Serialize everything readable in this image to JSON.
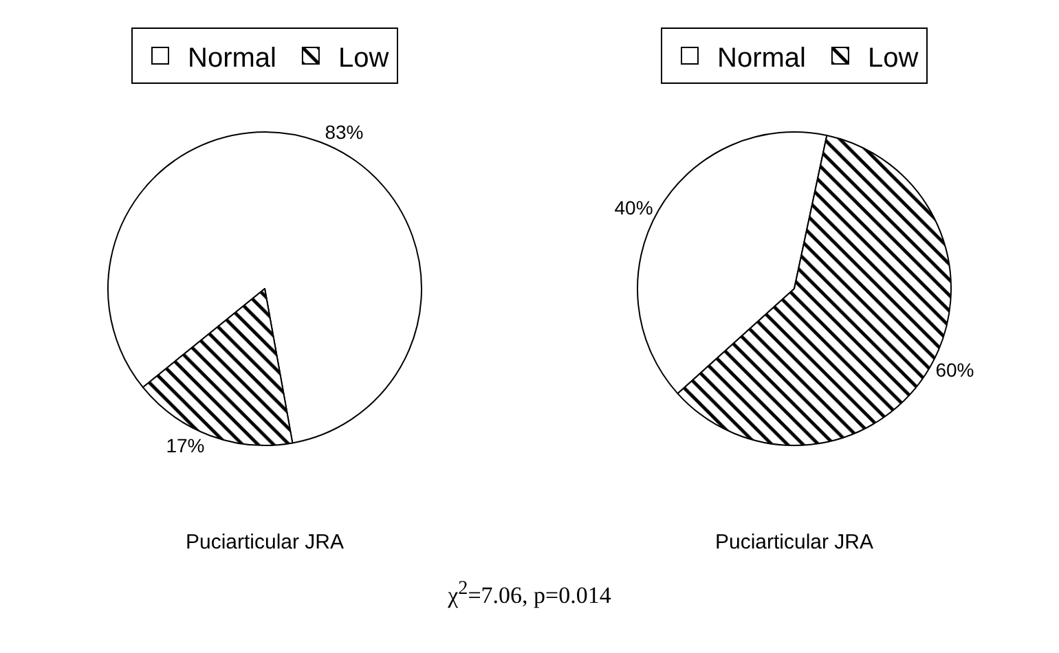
{
  "chart_data": [
    {
      "type": "pie",
      "title": "Puciarticular JRA",
      "categories": [
        "Normal",
        "Low"
      ],
      "values": [
        83,
        17
      ],
      "colors": [
        "#ffffff",
        "#000000"
      ],
      "value_labels": [
        "83%",
        "17%"
      ],
      "legend": "top"
    },
    {
      "type": "pie",
      "title": "Puciarticular JRA",
      "categories": [
        "Normal",
        "Low"
      ],
      "values": [
        40,
        60
      ],
      "colors": [
        "#ffffff",
        "#000000"
      ],
      "value_labels": [
        "40%",
        "60%"
      ],
      "legend": "top",
      "annotations": [
        "χ$^{2}$=7.06, p=0.014"
      ]
    }
  ]
}
